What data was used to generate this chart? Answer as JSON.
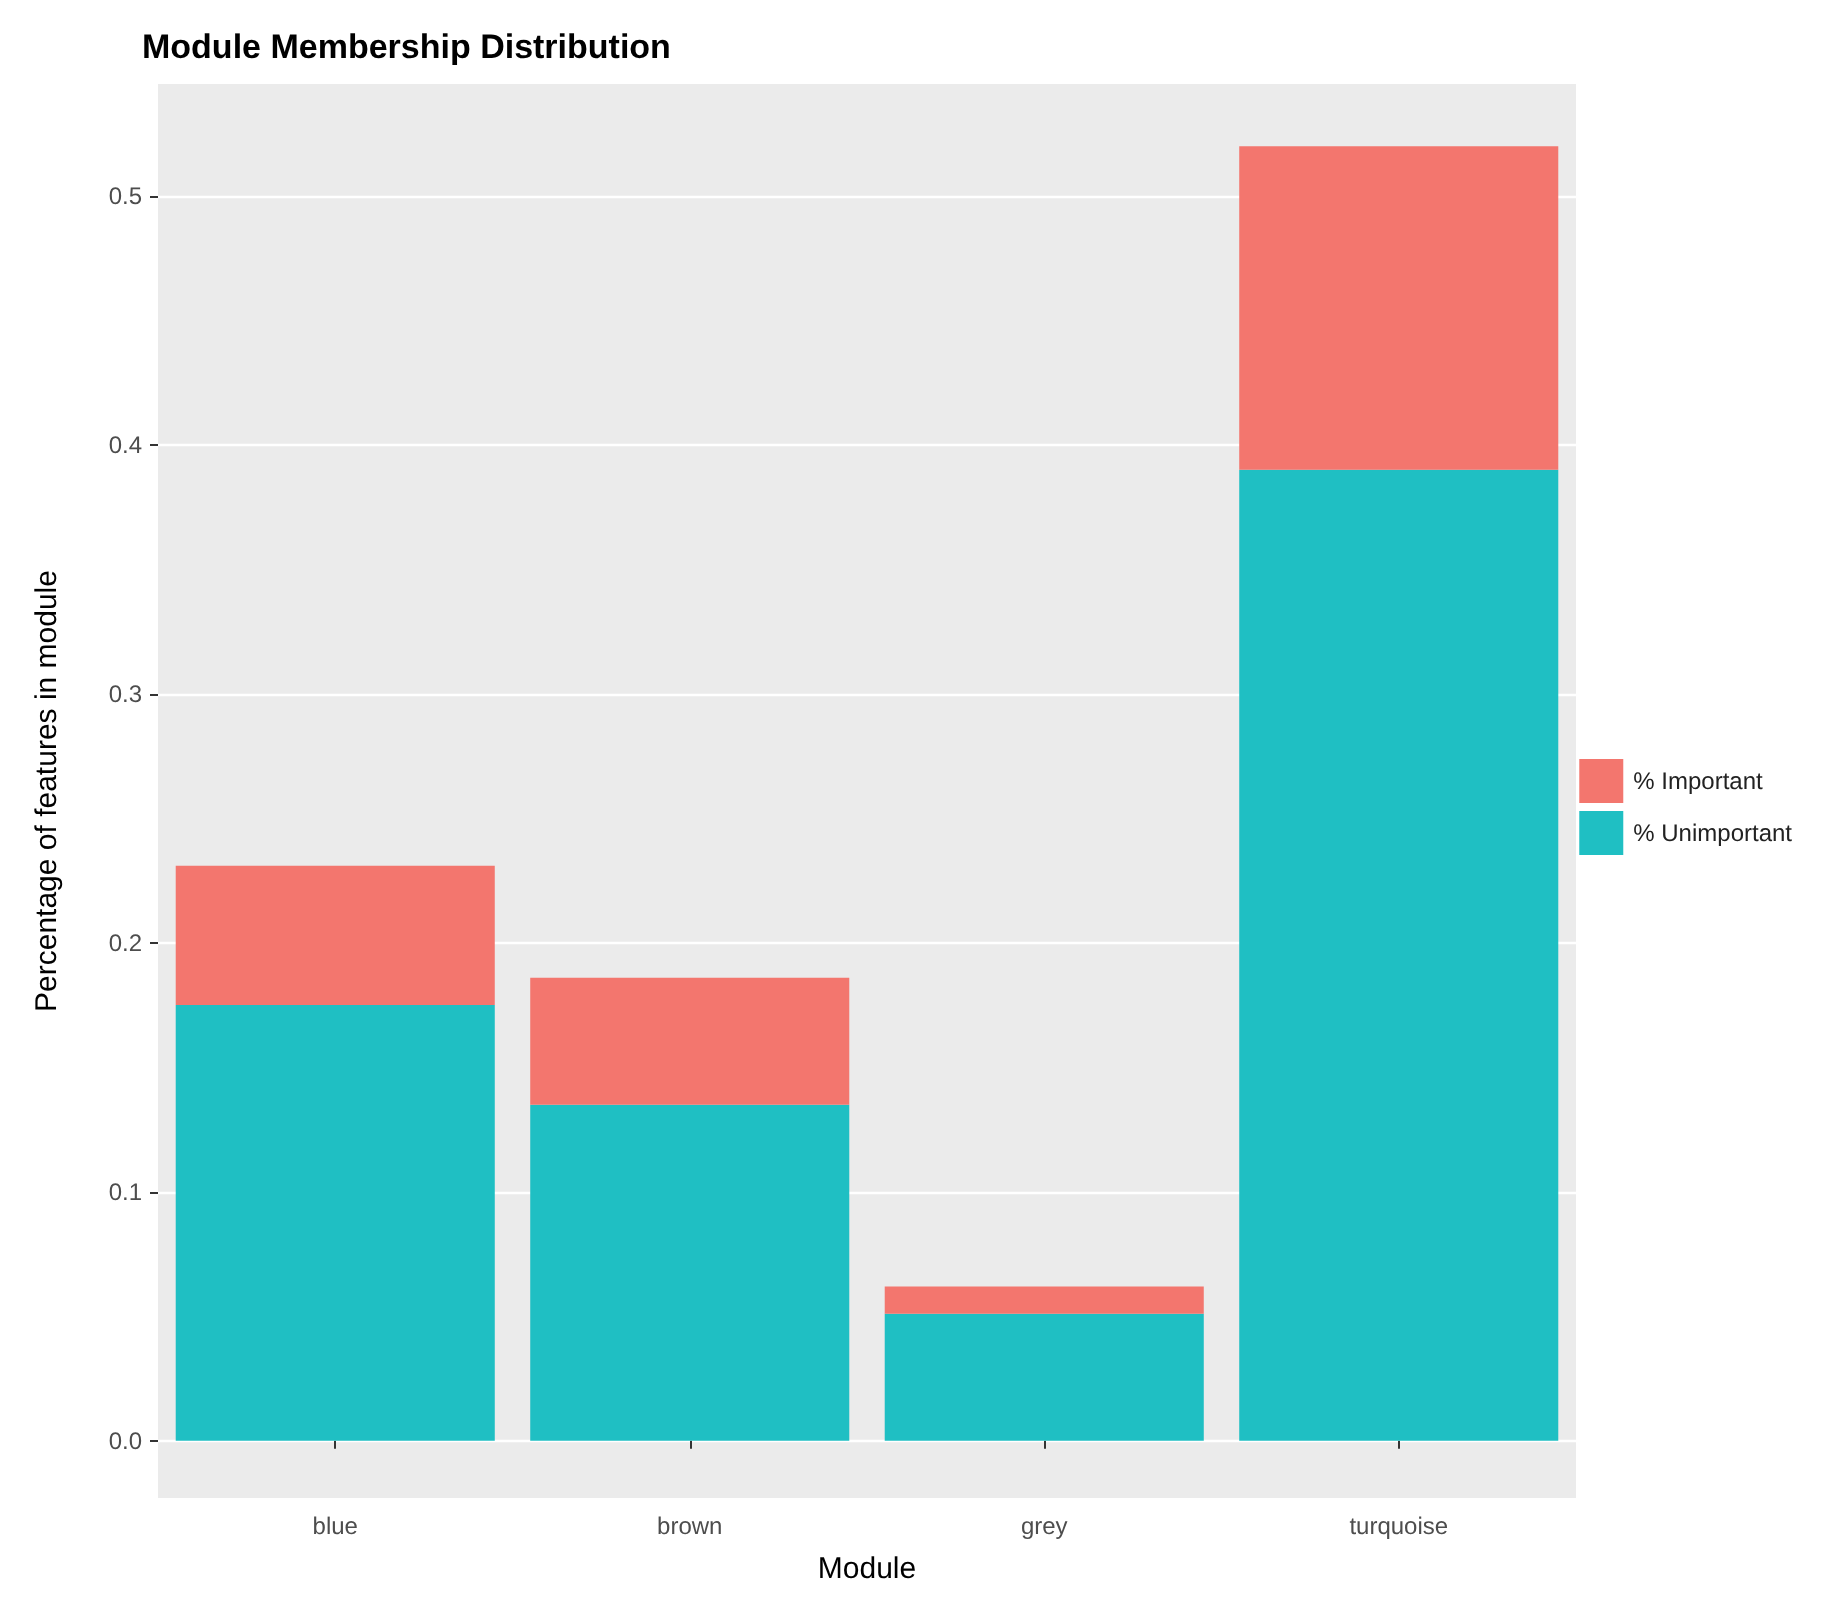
{
  "chart_data": {
    "type": "bar",
    "title": "Module Membership Distribution",
    "xlabel": "Module",
    "ylabel": "Percentage of features in module",
    "categories": [
      "blue",
      "brown",
      "grey",
      "turquoise"
    ],
    "stacked": true,
    "series": [
      {
        "name": "% Unimportant",
        "color": "#1fbfc3",
        "values": [
          0.175,
          0.135,
          0.051,
          0.39
        ]
      },
      {
        "name": "% Important",
        "color": "#f3766e",
        "values": [
          0.056,
          0.051,
          0.011,
          0.13
        ]
      }
    ],
    "ylim": [
      -0.023,
      0.545
    ],
    "yticks": [
      {
        "value": 0,
        "label": "0.0"
      },
      0.1,
      0.2,
      0.3,
      0.4,
      0.5
    ],
    "grid": "y",
    "legend": "right"
  }
}
